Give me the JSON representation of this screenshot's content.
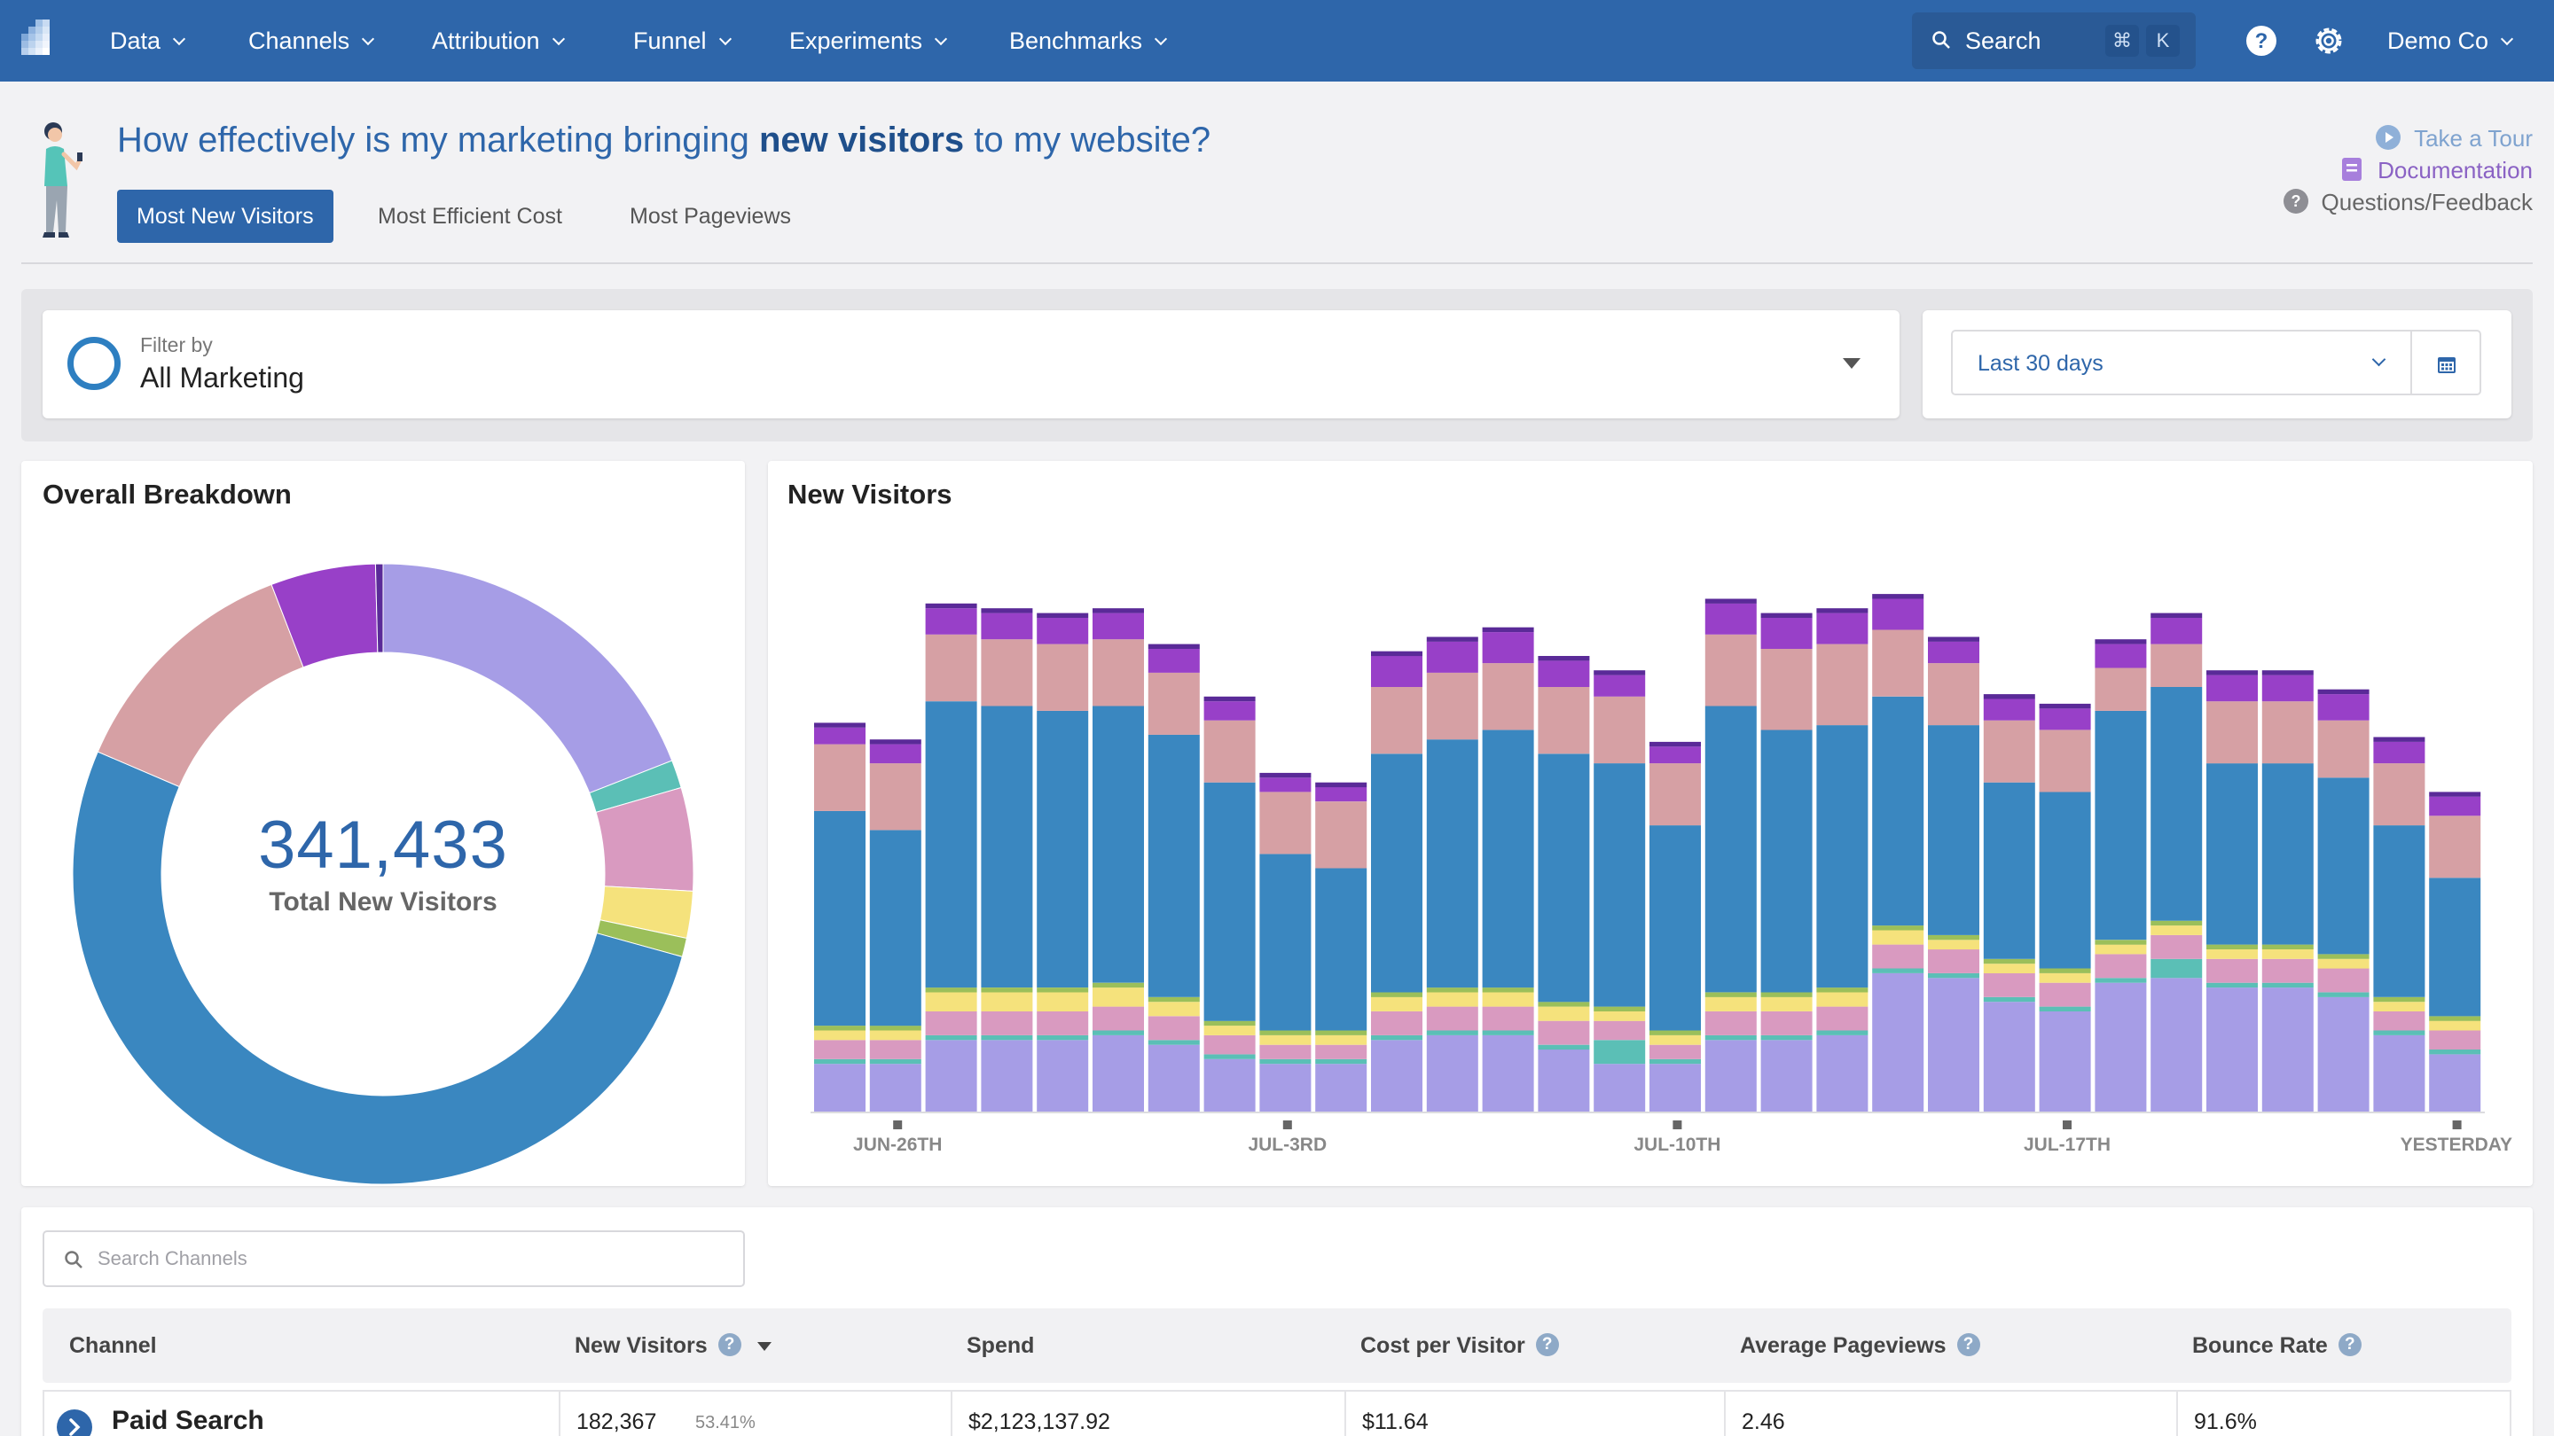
{
  "nav": {
    "items": [
      "Data",
      "Channels",
      "Attribution",
      "Funnel",
      "Experiments",
      "Benchmarks"
    ],
    "search_label": "Search",
    "kbd": [
      "⌘",
      "K"
    ],
    "company": "Demo Co"
  },
  "header": {
    "question_pre": "How effectively is my marketing bringing ",
    "question_bold": "new visitors",
    "question_post": " to my website?",
    "tabs": [
      "Most New Visitors",
      "Most Efficient Cost",
      "Most Pageviews"
    ],
    "active_tab": "Most New Visitors",
    "links": {
      "tour": "Take a Tour",
      "docs": "Documentation",
      "feedback": "Questions/Feedback"
    }
  },
  "filter": {
    "label": "Filter by",
    "value": "All Marketing"
  },
  "date_range": {
    "value": "Last 30 days"
  },
  "breakdown": {
    "title": "Overall Breakdown",
    "total": "341,433",
    "total_label": "Total New Visitors"
  },
  "new_visitors": {
    "title": "New Visitors"
  },
  "table": {
    "search_placeholder": "Search Channels",
    "columns": [
      "Channel",
      "New Visitors",
      "Spend",
      "Cost per Visitor",
      "Average Pageviews",
      "Bounce Rate"
    ],
    "rows": [
      {
        "channel": "Paid Search",
        "new_visitors": "182,367",
        "pct": "53.41%",
        "spend": "$2,123,137.92",
        "cpv": "$11.64",
        "avg_pageviews": "2.46",
        "bounce": "91.6%"
      }
    ]
  },
  "colors": {
    "nav": "#2e66aa",
    "series": [
      "#a69de6",
      "#d98a9c",
      "#5bbfb6",
      "#d99ac0",
      "#f5e27c",
      "#9bbf5a",
      "#3a87c0",
      "#d6a0a4",
      "#9840c8",
      "#5a2a98"
    ]
  },
  "chart_data": [
    {
      "type": "pie",
      "categories": [
        "Lavender",
        "Teal",
        "Pink",
        "Yellow",
        "Green",
        "Blue",
        "Rose",
        "Purple",
        "Dark Purple"
      ],
      "values": [
        19.5,
        1.5,
        5.5,
        2.5,
        1.0,
        53.4,
        13.0,
        5.6,
        0.4
      ],
      "colors": [
        "#a69de6",
        "#5bbfb6",
        "#d99ac0",
        "#f5e27c",
        "#9bbf5a",
        "#3a87c0",
        "#d6a0a4",
        "#9840c8",
        "#5a2a98"
      ]
    },
    {
      "type": "bar",
      "stacked": true,
      "x_ticks": [
        "JUN-26TH",
        "JUL-3RD",
        "JUL-10TH",
        "JUL-17TH",
        "YESTERDAY"
      ],
      "days": 30,
      "ylim": [
        0,
        11000
      ],
      "series": [
        {
          "color": "#a69de6",
          "values": [
            1000,
            1000,
            1500,
            1500,
            1500,
            1600,
            1400,
            1100,
            1000,
            1000,
            1500,
            1600,
            1600,
            1300,
            1000,
            1000,
            1500,
            1500,
            1600,
            2900,
            2800,
            2300,
            2100,
            2700,
            2800,
            2600,
            2600,
            2400,
            1600,
            1200
          ]
        },
        {
          "color": "#5bbfb6",
          "values": [
            100,
            100,
            100,
            100,
            100,
            100,
            100,
            100,
            100,
            100,
            100,
            100,
            100,
            100,
            500,
            100,
            100,
            100,
            100,
            100,
            100,
            100,
            100,
            100,
            400,
            100,
            100,
            100,
            100,
            100
          ]
        },
        {
          "color": "#d99ac0",
          "values": [
            400,
            400,
            500,
            500,
            500,
            500,
            500,
            400,
            300,
            300,
            500,
            500,
            500,
            500,
            400,
            300,
            500,
            500,
            500,
            500,
            500,
            500,
            500,
            500,
            500,
            500,
            500,
            500,
            400,
            400
          ]
        },
        {
          "color": "#f5e27c",
          "values": [
            200,
            200,
            400,
            400,
            400,
            400,
            300,
            200,
            200,
            200,
            300,
            300,
            300,
            300,
            200,
            200,
            300,
            300,
            300,
            300,
            200,
            200,
            200,
            200,
            200,
            200,
            200,
            200,
            200,
            200
          ]
        },
        {
          "color": "#9bbf5a",
          "values": [
            100,
            100,
            100,
            100,
            100,
            100,
            100,
            100,
            100,
            100,
            100,
            100,
            100,
            100,
            100,
            100,
            100,
            100,
            100,
            100,
            100,
            100,
            100,
            100,
            100,
            100,
            100,
            100,
            100,
            100
          ]
        },
        {
          "color": "#3a87c0",
          "values": [
            4500,
            4100,
            6000,
            5900,
            5800,
            5800,
            5500,
            5000,
            3700,
            3400,
            5000,
            5200,
            5400,
            5200,
            5100,
            4300,
            6000,
            5500,
            5500,
            4800,
            4400,
            3700,
            3700,
            4800,
            4900,
            3800,
            3800,
            3700,
            3600,
            2900
          ]
        },
        {
          "color": "#d6a0a4",
          "values": [
            1400,
            1400,
            1400,
            1400,
            1400,
            1400,
            1300,
            1300,
            1300,
            1400,
            1400,
            1400,
            1400,
            1400,
            1400,
            1300,
            1500,
            1700,
            1700,
            1400,
            1300,
            1300,
            1300,
            900,
            900,
            1300,
            1300,
            1200,
            1300,
            1300
          ]
        },
        {
          "color": "#9840c8",
          "values": [
            350,
            400,
            550,
            550,
            550,
            550,
            500,
            400,
            300,
            300,
            650,
            650,
            650,
            550,
            450,
            350,
            650,
            650,
            650,
            650,
            450,
            450,
            450,
            500,
            550,
            550,
            550,
            550,
            450,
            400
          ]
        },
        {
          "color": "#5a2a98",
          "values": [
            100,
            100,
            100,
            100,
            100,
            100,
            100,
            100,
            100,
            100,
            100,
            100,
            100,
            100,
            100,
            100,
            100,
            100,
            100,
            100,
            100,
            100,
            100,
            100,
            100,
            100,
            100,
            100,
            100,
            100
          ]
        }
      ]
    }
  ]
}
